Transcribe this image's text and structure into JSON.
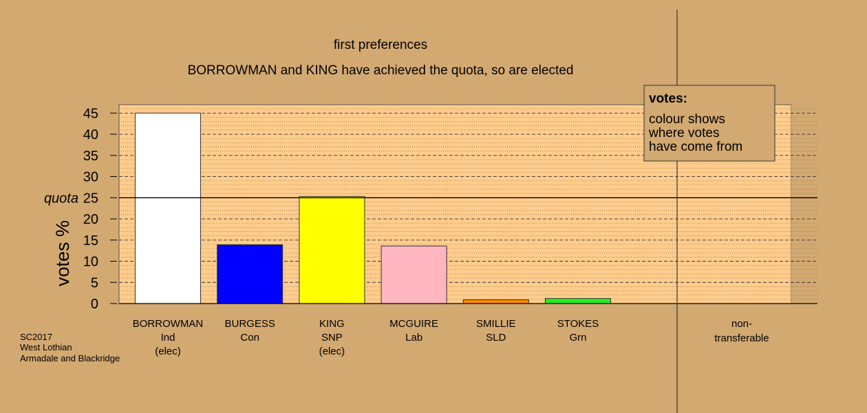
{
  "chart_data": {
    "type": "bar",
    "title": "first preferences",
    "subtitle": "BORROWMAN and KING have achieved the quota, so are elected",
    "ylabel": "votes %",
    "ylim": [
      0,
      47
    ],
    "yticks": [
      0,
      5,
      10,
      15,
      20,
      25,
      30,
      35,
      40,
      45
    ],
    "quota": {
      "label": "quota",
      "value": 25
    },
    "categories": [
      {
        "name": "BORROWMAN",
        "party": "Ind",
        "status": "(elec)",
        "value": 45.0,
        "color": "#ffffff"
      },
      {
        "name": "BURGESS",
        "party": "Con",
        "status": "",
        "value": 13.9,
        "color": "#0000ff"
      },
      {
        "name": "KING",
        "party": "SNP",
        "status": "(elec)",
        "value": 25.3,
        "color": "#ffff00"
      },
      {
        "name": "MCGUIRE",
        "party": "Lab",
        "status": "",
        "value": 13.6,
        "color": "#ffb6c1"
      },
      {
        "name": "SMILLIE",
        "party": "SLD",
        "status": "",
        "value": 0.9,
        "color": "#ff8c00"
      },
      {
        "name": "STOKES",
        "party": "Grn",
        "status": "",
        "value": 1.2,
        "color": "#22ee22"
      }
    ],
    "nontransferable": {
      "label_line1": "non-",
      "label_line2": "transferable",
      "value": 0
    },
    "legend": {
      "position": "top-right",
      "title": "votes:",
      "lines": [
        "colour shows",
        "where votes",
        "have come from"
      ]
    },
    "grid": true
  },
  "footer": {
    "line1": "SC2017",
    "line2": "West Lothian",
    "line3": "Armadale and Blackridge"
  },
  "colors": {
    "background": "#d3a972",
    "plot_background": "#ffcc8c"
  }
}
